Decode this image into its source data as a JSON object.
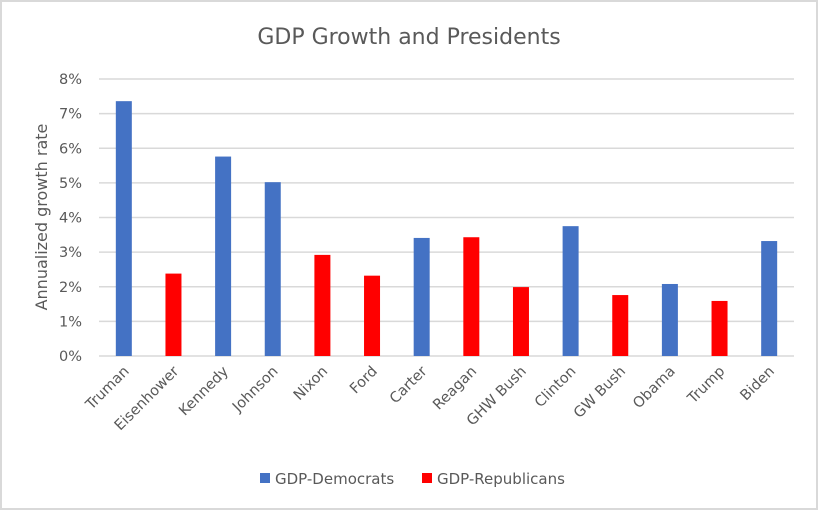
{
  "chart_data": {
    "type": "bar",
    "title": "GDP Growth and Presidents",
    "xlabel": "",
    "ylabel": "Annualized growth rate",
    "ylim": [
      0,
      0.08
    ],
    "yticks": [
      "0%",
      "1%",
      "2%",
      "3%",
      "4%",
      "5%",
      "6%",
      "7%",
      "8%"
    ],
    "ytick_values": [
      0,
      0.01,
      0.02,
      0.03,
      0.04,
      0.05,
      0.06,
      0.07,
      0.08
    ],
    "grid": true,
    "legend_position": "bottom",
    "categories": [
      "Truman",
      "Eisenhower",
      "Kennedy",
      "Johnson",
      "Nixon",
      "Ford",
      "Carter",
      "Reagan",
      "GHW Bush",
      "Clinton",
      "GW Bush",
      "Obama",
      "Trump",
      "Biden"
    ],
    "series": [
      {
        "name": "GDP-Democrats",
        "color": "#4472C4",
        "values": [
          0.0736,
          null,
          0.0576,
          0.0502,
          null,
          null,
          0.0341,
          null,
          null,
          0.0375,
          null,
          0.0208,
          null,
          0.0332
        ]
      },
      {
        "name": "GDP-Republicans",
        "color": "#FF0000",
        "values": [
          null,
          0.0238,
          null,
          null,
          0.0292,
          0.0232,
          null,
          0.0343,
          0.0199,
          null,
          0.0176,
          null,
          0.0159,
          null
        ]
      }
    ]
  }
}
